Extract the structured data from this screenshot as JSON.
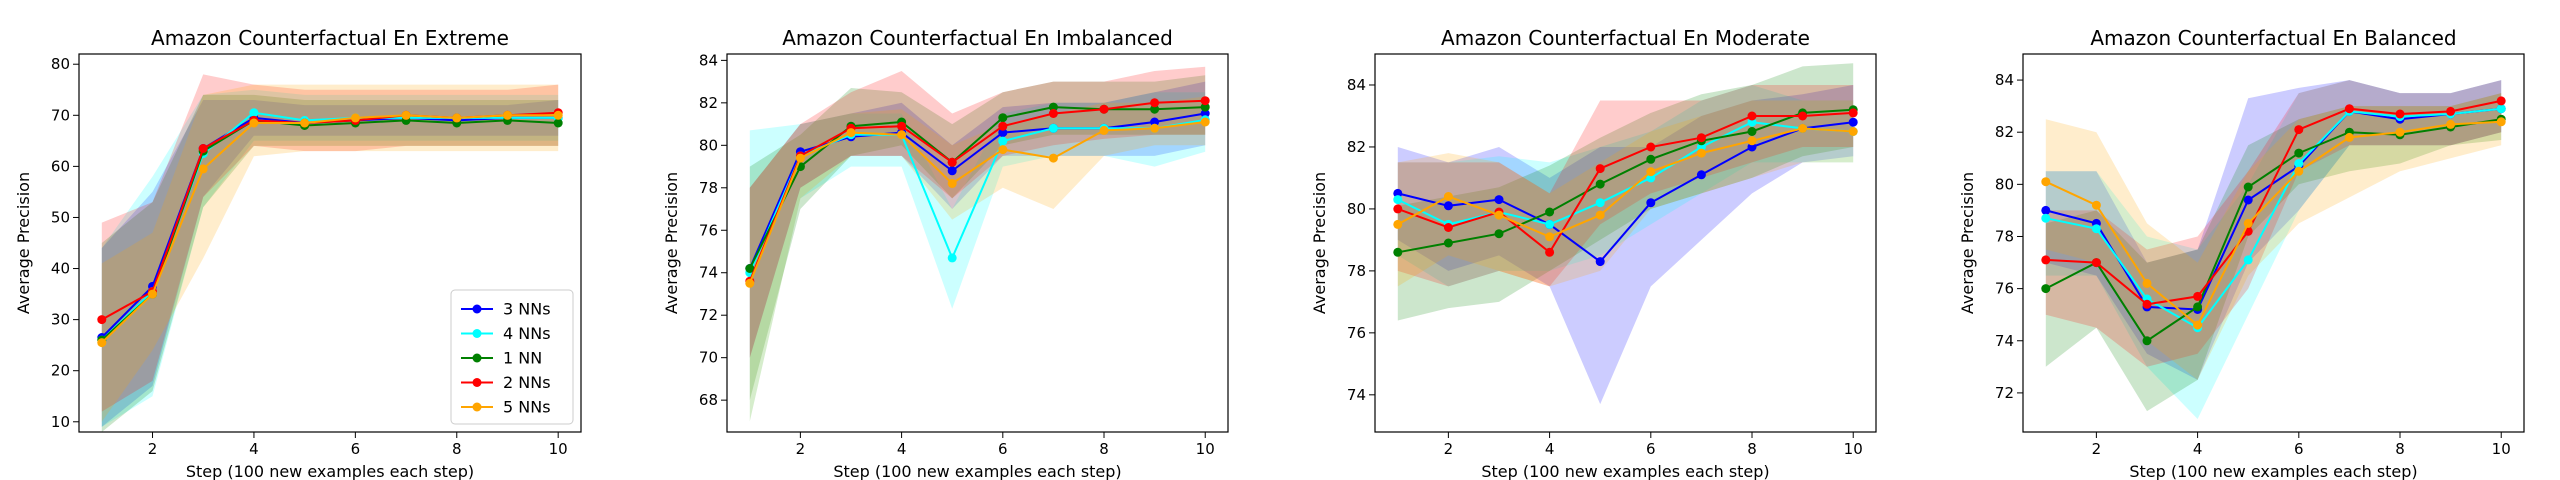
{
  "chart_data": [
    {
      "type": "line",
      "title": "Amazon Counterfactual En Extreme",
      "xlabel": "Step (100 new examples each step)",
      "ylabel": "Average Precision",
      "xlim": [
        0.55,
        10.45
      ],
      "ylim": [
        8,
        82
      ],
      "xticks": [
        2,
        4,
        6,
        8,
        10
      ],
      "yticks": [
        10,
        20,
        30,
        40,
        50,
        60,
        70,
        80
      ],
      "x": [
        1,
        2,
        3,
        4,
        5,
        6,
        7,
        8,
        9,
        10
      ],
      "legend": {
        "position": "lower-right"
      },
      "series": [
        {
          "name": "3 NNs",
          "color": "#0000ff",
          "values": [
            26.5,
            36.5,
            63.5,
            69.5,
            68.5,
            69.0,
            69.5,
            69.0,
            69.5,
            69.5
          ],
          "lower": [
            9,
            17,
            54,
            66,
            66,
            66,
            66,
            66,
            66,
            66
          ],
          "upper": [
            44,
            55,
            73,
            73,
            72,
            72,
            72,
            72,
            72,
            73
          ]
        },
        {
          "name": "4 NNs",
          "color": "#00ffff",
          "values": [
            26.0,
            35.5,
            62.5,
            70.5,
            69.0,
            69.5,
            69.5,
            69.5,
            69.5,
            69.5
          ],
          "lower": [
            9,
            15,
            52,
            65,
            65,
            65,
            65,
            65,
            65,
            65
          ],
          "upper": [
            44,
            58,
            74,
            75,
            74,
            74,
            74,
            74,
            74,
            74
          ]
        },
        {
          "name": "1 NN",
          "color": "#008000",
          "values": [
            26.0,
            35.0,
            63.0,
            69.0,
            68.0,
            68.5,
            69.0,
            68.5,
            69.0,
            68.5
          ],
          "lower": [
            8,
            16,
            52,
            64,
            64,
            64,
            64,
            64,
            64,
            64
          ],
          "upper": [
            45,
            53,
            74,
            74,
            73,
            73,
            73,
            73,
            73,
            73
          ]
        },
        {
          "name": "2 NNs",
          "color": "#ff0000",
          "values": [
            30.0,
            35.5,
            63.5,
            69.0,
            68.5,
            69.0,
            70.0,
            69.5,
            70.0,
            70.5
          ],
          "lower": [
            12,
            18,
            54,
            64,
            63,
            63,
            64,
            64,
            64,
            64
          ],
          "upper": [
            49,
            53,
            78,
            76,
            75,
            75,
            75,
            75,
            75,
            76
          ]
        },
        {
          "name": "5 NNs",
          "color": "#ffa500",
          "values": [
            25.5,
            35.0,
            59.5,
            68.5,
            68.5,
            69.5,
            70.0,
            69.5,
            70.0,
            70.0
          ],
          "lower": [
            10,
            24,
            42,
            62,
            63,
            63,
            63,
            63,
            63,
            63
          ],
          "upper": [
            41,
            47,
            74,
            76,
            76,
            76,
            76,
            76,
            76,
            76
          ]
        }
      ]
    },
    {
      "type": "line",
      "title": "Amazon Counterfactual En Imbalanced",
      "xlabel": "Step (100 new examples each step)",
      "ylabel": "Average Precision",
      "xlim": [
        0.55,
        10.45
      ],
      "ylim": [
        66.5,
        84.3
      ],
      "xticks": [
        2,
        4,
        6,
        8,
        10
      ],
      "yticks": [
        68,
        70,
        72,
        74,
        76,
        78,
        80,
        82,
        84
      ],
      "x": [
        1,
        2,
        3,
        4,
        5,
        6,
        7,
        8,
        9,
        10
      ],
      "series": [
        {
          "name": "3 NNs",
          "color": "#0000ff",
          "values": [
            74.2,
            79.7,
            80.4,
            80.6,
            78.8,
            80.6,
            80.8,
            80.8,
            81.1,
            81.5
          ],
          "lower": [
            70,
            78,
            79.5,
            79.5,
            77,
            79.5,
            79.5,
            79.5,
            79.5,
            80
          ],
          "upper": [
            78,
            81,
            81.5,
            82,
            80,
            81.8,
            82,
            82,
            82.5,
            83
          ]
        },
        {
          "name": "4 NNs",
          "color": "#00ffff",
          "values": [
            74.0,
            79.5,
            80.5,
            80.5,
            74.7,
            80.2,
            80.8,
            80.8,
            80.8,
            81.2
          ],
          "lower": [
            67,
            77.5,
            79,
            79,
            72.3,
            79,
            79.5,
            79.5,
            79,
            79.7
          ],
          "upper": [
            80.7,
            81,
            81.5,
            81.5,
            77,
            81.5,
            82,
            82,
            82.5,
            82.5
          ]
        },
        {
          "name": "1 NN",
          "color": "#008000",
          "values": [
            74.2,
            79.0,
            80.9,
            81.1,
            79.2,
            81.3,
            81.8,
            81.7,
            81.7,
            81.8
          ],
          "lower": [
            68,
            77,
            79.5,
            80,
            77.5,
            80,
            80.5,
            80.5,
            80.5,
            80.5
          ],
          "upper": [
            79,
            80.5,
            82.7,
            82.5,
            81,
            82.5,
            83,
            83,
            83,
            83.3
          ]
        },
        {
          "name": "2 NNs",
          "color": "#ff0000",
          "values": [
            73.6,
            79.5,
            80.8,
            80.9,
            79.2,
            80.9,
            81.5,
            81.7,
            82.0,
            82.1
          ],
          "lower": [
            70,
            78,
            79.5,
            79.5,
            77.5,
            79.5,
            80,
            80.3,
            80.5,
            80.5
          ],
          "upper": [
            78,
            81,
            82.5,
            83.5,
            81.5,
            82.5,
            83,
            83,
            83.5,
            83.7
          ]
        },
        {
          "name": "5 NNs",
          "color": "#ffa500",
          "values": [
            73.5,
            79.4,
            80.6,
            80.5,
            78.2,
            79.8,
            79.4,
            80.7,
            80.8,
            81.1
          ],
          "lower": [
            67,
            77.5,
            79.5,
            79.5,
            76.5,
            78,
            77,
            79.5,
            80,
            80
          ],
          "upper": [
            78,
            81,
            81.5,
            81.7,
            80,
            81,
            81.5,
            82,
            82,
            82.3
          ]
        }
      ]
    },
    {
      "type": "line",
      "title": "Amazon Counterfactual En Moderate",
      "xlabel": "Step (100 new examples each step)",
      "ylabel": "Average Precision",
      "xlim": [
        0.55,
        10.45
      ],
      "ylim": [
        72.8,
        85.0
      ],
      "xticks": [
        2,
        4,
        6,
        8,
        10
      ],
      "yticks": [
        74,
        76,
        78,
        80,
        82,
        84
      ],
      "x": [
        1,
        2,
        3,
        4,
        5,
        6,
        7,
        8,
        9,
        10
      ],
      "series": [
        {
          "name": "3 NNs",
          "color": "#0000ff",
          "values": [
            80.5,
            80.1,
            80.3,
            79.5,
            78.3,
            80.2,
            81.1,
            82.0,
            82.6,
            82.8
          ],
          "lower": [
            79,
            78,
            78.5,
            77.5,
            73.7,
            77.5,
            79,
            80.5,
            81.5,
            81.7
          ],
          "upper": [
            82,
            81.5,
            82,
            81,
            82,
            82,
            83,
            83.5,
            83.7,
            84
          ]
        },
        {
          "name": "4 NNs",
          "color": "#00ffff",
          "values": [
            80.3,
            79.5,
            79.9,
            79.5,
            80.2,
            81.0,
            82.0,
            82.8,
            82.6,
            82.5
          ],
          "lower": [
            78.5,
            77.5,
            78,
            78,
            78.5,
            79.5,
            80.5,
            81.5,
            81.5,
            81.5
          ],
          "upper": [
            81.5,
            81.5,
            81.7,
            81.5,
            82,
            82.5,
            83.5,
            84,
            83.5,
            83.5
          ]
        },
        {
          "name": "1 NN",
          "color": "#008000",
          "values": [
            78.6,
            78.9,
            79.2,
            79.9,
            80.8,
            81.6,
            82.2,
            82.5,
            83.1,
            83.2
          ],
          "lower": [
            76.4,
            76.8,
            77,
            78,
            79,
            80,
            80.5,
            81,
            81.7,
            82
          ]
        },
        {
          "name": "2 NNs",
          "color": "#ff0000",
          "values": [
            80.0,
            79.4,
            79.9,
            78.6,
            81.3,
            82.0,
            82.3,
            83.0,
            83.0,
            83.1
          ],
          "lower": [
            78,
            77.5,
            78,
            77.5,
            79.5,
            80.5,
            81,
            81.5,
            82,
            82
          ],
          "upper": [
            81.5,
            81.5,
            81.5,
            80.5,
            83.5,
            83.5,
            83.5,
            84,
            84,
            84
          ]
        },
        {
          "name": "5 NNs",
          "color": "#ffa500",
          "values": [
            79.5,
            80.4,
            79.8,
            79.1,
            79.8,
            81.2,
            81.8,
            82.2,
            82.6,
            82.5
          ],
          "lower": [
            77.5,
            78.5,
            78,
            77.5,
            78,
            80,
            80.5,
            81,
            81.5,
            81.5
          ],
          "upper": [
            81.5,
            81.8,
            81.5,
            80.5,
            81.5,
            82.5,
            83,
            83.5,
            83.5,
            83.5
          ]
        }
      ]
    },
    {
      "type": "line",
      "title": "Amazon Counterfactual En Balanced",
      "xlabel": "Step (100 new examples each step)",
      "ylabel": "Average Precision",
      "xlim": [
        0.55,
        10.45
      ],
      "ylim": [
        70.5,
        85.0
      ],
      "xticks": [
        2,
        4,
        6,
        8,
        10
      ],
      "yticks": [
        72,
        74,
        76,
        78,
        80,
        82,
        84
      ],
      "x": [
        1,
        2,
        3,
        4,
        5,
        6,
        7,
        8,
        9,
        10
      ],
      "series": [
        {
          "name": "3 NNs",
          "color": "#0000ff",
          "values": [
            79.0,
            78.5,
            75.3,
            75.2,
            79.4,
            80.7,
            82.8,
            82.5,
            82.7,
            82.9
          ],
          "lower": [
            77,
            76.5,
            73.5,
            72.5,
            77,
            79,
            81.5,
            81.5,
            81.5,
            82
          ],
          "upper": [
            80.5,
            80.5,
            77,
            77.5,
            83.3,
            83.7,
            84,
            83.5,
            83.5,
            84
          ]
        },
        {
          "name": "4 NNs",
          "color": "#00ffff",
          "values": [
            78.7,
            78.3,
            75.6,
            74.5,
            77.1,
            80.8,
            82.8,
            82.6,
            82.7,
            82.9
          ],
          "lower": [
            76.5,
            76.5,
            73,
            71,
            75,
            79,
            81.5,
            81.5,
            81.5,
            82
          ],
          "upper": [
            80.5,
            80.5,
            78,
            77.5,
            80,
            83.5,
            84,
            83.5,
            83.5,
            84
          ]
        },
        {
          "name": "1 NN",
          "color": "#008000",
          "values": [
            76.0,
            77.0,
            74.0,
            75.3,
            79.9,
            81.2,
            82.0,
            81.9,
            82.2,
            82.5
          ],
          "lower": [
            73,
            74.5,
            71.3,
            72.5,
            78,
            80,
            80.5,
            80.8,
            81.5,
            81.7
          ],
          "upper": [
            78.5,
            79,
            77,
            77.5,
            81.5,
            82.5,
            83,
            83,
            83,
            83.5
          ]
        },
        {
          "name": "2 NNs",
          "color": "#ff0000",
          "values": [
            77.1,
            77.0,
            75.4,
            75.7,
            78.2,
            82.1,
            82.9,
            82.7,
            82.8,
            83.2
          ],
          "lower": [
            75,
            74.5,
            73,
            73.5,
            76,
            80.5,
            81.5,
            81.5,
            81.5,
            82
          ],
          "upper": [
            79,
            79,
            77.5,
            78,
            80.5,
            83.5,
            84,
            83.5,
            83.5,
            84
          ]
        },
        {
          "name": "5 NNs",
          "color": "#ffa500",
          "values": [
            80.1,
            79.2,
            76.2,
            74.6,
            78.5,
            80.5,
            81.8,
            82.0,
            82.3,
            82.4
          ],
          "lower": [
            77.5,
            77,
            74,
            72.5,
            76.5,
            78.5,
            79.5,
            80.5,
            81,
            81.5
          ],
          "upper": [
            82.5,
            82,
            78.5,
            77,
            80.5,
            82.5,
            83,
            83,
            83,
            83.5
          ]
        }
      ]
    }
  ]
}
